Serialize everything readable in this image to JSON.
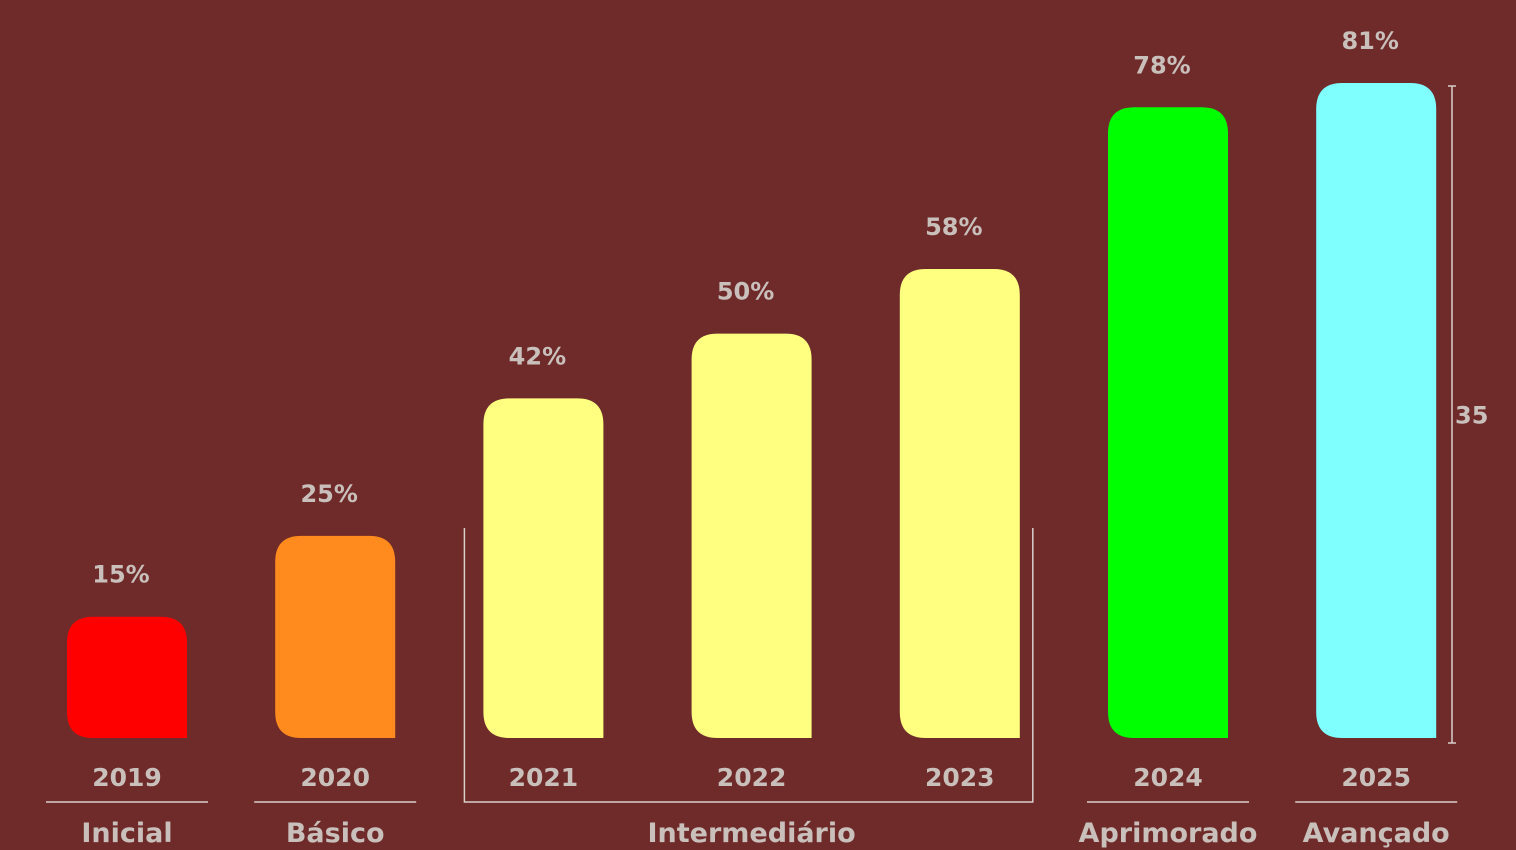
{
  "chart_data": {
    "type": "bar",
    "categories": [
      "2019",
      "2020",
      "2021",
      "2022",
      "2023",
      "2024",
      "2025"
    ],
    "values": [
      15,
      25,
      42,
      50,
      58,
      78,
      81
    ],
    "value_labels": [
      "15%",
      "25%",
      "42%",
      "50%",
      "58%",
      "78%",
      "81%"
    ],
    "bar_colors": [
      "#ff0000",
      "#ff8a1e",
      "#ffff80",
      "#ffff80",
      "#ffff80",
      "#00ff00",
      "#80ffff"
    ],
    "levels": [
      {
        "label": "Inicial",
        "categories": [
          "2019"
        ]
      },
      {
        "label": "Básico",
        "categories": [
          "2020"
        ]
      },
      {
        "label": "Intermediário",
        "categories": [
          "2021",
          "2022",
          "2023"
        ]
      },
      {
        "label": "Aprimorado",
        "categories": [
          "2024"
        ]
      },
      {
        "label": "Avançado",
        "categories": [
          "2025"
        ]
      }
    ],
    "annotation": {
      "label": "35",
      "from_value": 0,
      "to_value": 81
    },
    "ylim": [
      0,
      81
    ],
    "grid": false,
    "legend": "none",
    "title": "",
    "xlabel": "",
    "ylabel": ""
  },
  "colors": {
    "background": "#6f2b2a",
    "text": "#c9c0bc",
    "rule": "#d8cfcb"
  }
}
